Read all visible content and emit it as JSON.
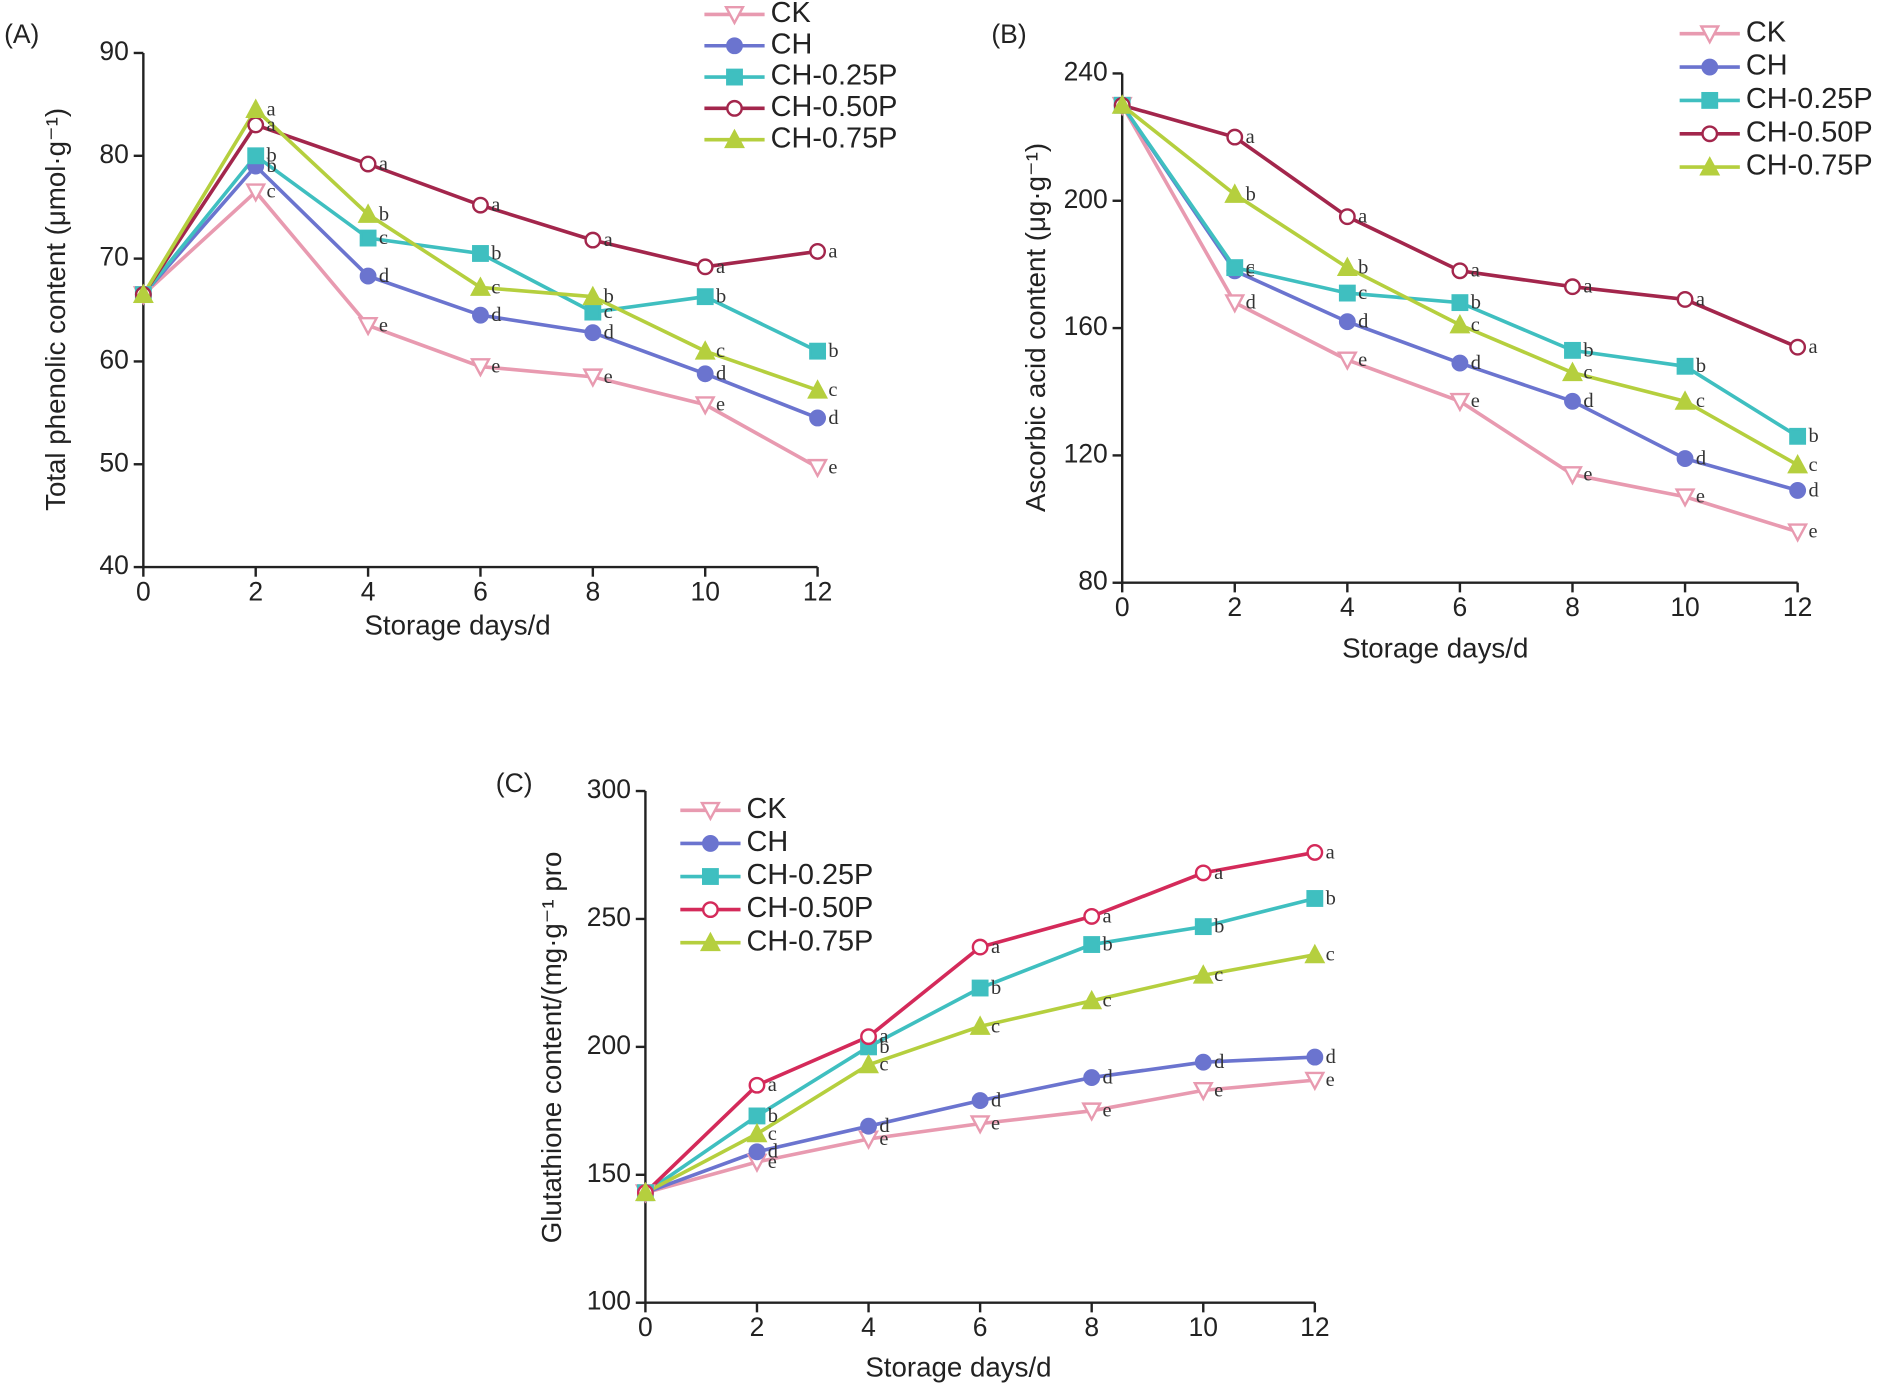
{
  "chart_data": [
    {
      "type": "line",
      "label": "(A)",
      "ylabel": "Total phenolic content (μmol·g⁻¹)",
      "xlabel": "Storage days/d",
      "x": [
        0,
        2,
        4,
        6,
        8,
        10,
        12
      ],
      "xlim": [
        0,
        12
      ],
      "xticks": [
        0,
        2,
        4,
        6,
        8,
        10,
        12
      ],
      "ylim": [
        40,
        90
      ],
      "yticks": [
        40,
        50,
        60,
        70,
        80,
        90
      ],
      "series": [
        {
          "name": "CK",
          "color": "#e89ab0",
          "marker": "down-triangle-open",
          "values": [
            66.5,
            76.5,
            63.5,
            59.5,
            58.5,
            55.8,
            49.7
          ],
          "letters": [
            null,
            "c",
            "e",
            "e",
            "e",
            "e",
            "e"
          ]
        },
        {
          "name": "CH",
          "color": "#6b74cf",
          "marker": "circle",
          "values": [
            66.5,
            79,
            68.3,
            64.5,
            62.8,
            58.8,
            54.5
          ],
          "letters": [
            null,
            "b",
            "d",
            "d",
            "d",
            "d",
            "d"
          ]
        },
        {
          "name": "CH-0.25P",
          "color": "#3fbfc0",
          "marker": "square",
          "values": [
            66.5,
            80,
            72,
            70.5,
            64.8,
            66.3,
            61
          ],
          "letters": [
            null,
            "b",
            "c",
            "b",
            "c",
            "b",
            "b"
          ]
        },
        {
          "name": "CH-0.50P",
          "color": "#a3264c",
          "marker": "circle-open",
          "values": [
            66.5,
            83,
            79.2,
            75.2,
            71.8,
            69.2,
            70.7
          ],
          "letters": [
            null,
            "a",
            "a",
            "a",
            "a",
            "a",
            "a"
          ]
        },
        {
          "name": "CH-0.75P",
          "color": "#b5cf3e",
          "marker": "triangle",
          "values": [
            66.5,
            84.5,
            74.3,
            67.2,
            66.3,
            61,
            57.2
          ],
          "letters": [
            null,
            "a",
            "b",
            "c",
            "b",
            "c",
            "c"
          ]
        }
      ]
    },
    {
      "type": "line",
      "label": "(B)",
      "ylabel": "Ascorbic acid content (μg·g⁻¹)",
      "xlabel": "Storage days/d",
      "x": [
        0,
        2,
        4,
        6,
        8,
        10,
        12
      ],
      "xlim": [
        0,
        12
      ],
      "xticks": [
        0,
        2,
        4,
        6,
        8,
        10,
        12
      ],
      "ylim": [
        80,
        240
      ],
      "yticks": [
        80,
        120,
        160,
        200,
        240
      ],
      "series": [
        {
          "name": "CK",
          "color": "#e89ab0",
          "marker": "down-triangle-open",
          "values": [
            230,
            168,
            150,
            137,
            114,
            107,
            96
          ],
          "letters": [
            null,
            "d",
            "e",
            "e",
            "e",
            "e",
            "e"
          ]
        },
        {
          "name": "CH",
          "color": "#6b74cf",
          "marker": "circle",
          "values": [
            230,
            178,
            162,
            149,
            137,
            119,
            109
          ],
          "letters": [
            null,
            "c",
            "d",
            "d",
            "d",
            "d",
            "d"
          ]
        },
        {
          "name": "CH-0.25P",
          "color": "#3fbfc0",
          "marker": "square",
          "values": [
            230,
            179,
            171,
            168,
            153,
            148,
            126
          ],
          "letters": [
            null,
            "c",
            "c",
            "b",
            "b",
            "b",
            "b"
          ]
        },
        {
          "name": "CH-0.50P",
          "color": "#a3264c",
          "marker": "circle-open",
          "values": [
            230,
            220,
            195,
            178,
            173,
            169,
            154
          ],
          "letters": [
            null,
            "a",
            "a",
            "a",
            "a",
            "a",
            "a"
          ]
        },
        {
          "name": "CH-0.75P",
          "color": "#b5cf3e",
          "marker": "triangle",
          "values": [
            230,
            202,
            179,
            161,
            146,
            137,
            117
          ],
          "letters": [
            null,
            "b",
            "b",
            "c",
            "c",
            "c",
            "c"
          ]
        }
      ]
    },
    {
      "type": "line",
      "label": "(C)",
      "ylabel": "Glutathione content/(mg·g⁻¹ pro",
      "xlabel": "Storage days/d",
      "x": [
        0,
        2,
        4,
        6,
        8,
        10,
        12
      ],
      "xlim": [
        0,
        12
      ],
      "xticks": [
        0,
        2,
        4,
        6,
        8,
        10,
        12
      ],
      "ylim": [
        100,
        300
      ],
      "yticks": [
        100,
        150,
        200,
        250,
        300
      ],
      "series": [
        {
          "name": "CK",
          "color": "#e89ab0",
          "marker": "down-triangle-open",
          "values": [
            143,
            155,
            164,
            170,
            175,
            183,
            187
          ],
          "letters": [
            null,
            "e",
            "e",
            "e",
            "e",
            "e",
            "e"
          ]
        },
        {
          "name": "CH",
          "color": "#6b74cf",
          "marker": "circle",
          "values": [
            143,
            159,
            169,
            179,
            188,
            194,
            196
          ],
          "letters": [
            null,
            "d",
            "d",
            "d",
            "d",
            "d",
            "d"
          ]
        },
        {
          "name": "CH-0.25P",
          "color": "#3fbfc0",
          "marker": "square",
          "values": [
            143,
            173,
            200,
            223,
            240,
            247,
            258
          ],
          "letters": [
            null,
            "b",
            "b",
            "b",
            "b",
            "b",
            "b"
          ]
        },
        {
          "name": "CH-0.50P",
          "color": "#d42a5a",
          "marker": "circle-open",
          "values": [
            143,
            185,
            204,
            239,
            251,
            268,
            276
          ],
          "letters": [
            null,
            "a",
            "a",
            "a",
            "a",
            "a",
            "a"
          ]
        },
        {
          "name": "CH-0.75P",
          "color": "#b5cf3e",
          "marker": "triangle",
          "values": [
            143,
            166,
            193,
            208,
            218,
            228,
            236
          ],
          "letters": [
            null,
            "c",
            "c",
            "c",
            "c",
            "c",
            "c"
          ]
        }
      ]
    }
  ]
}
